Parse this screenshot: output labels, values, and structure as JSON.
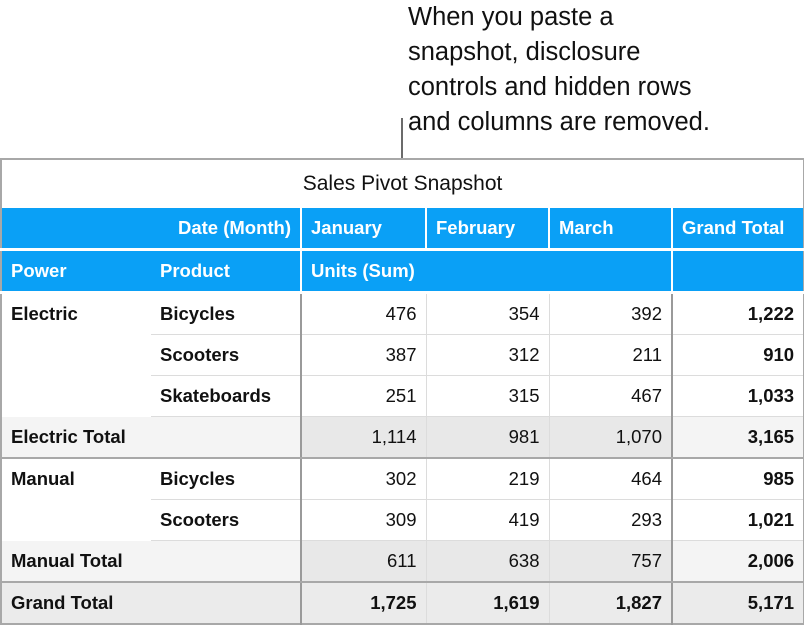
{
  "callout": {
    "lines": [
      "When you paste a",
      "snapshot, disclosure",
      "controls and hidden rows",
      "and columns are removed."
    ]
  },
  "table": {
    "title": "Sales Pivot Snapshot",
    "header1": {
      "label": "Date (Month)",
      "months": [
        "January",
        "February",
        "March"
      ],
      "grand_total": "Grand Total"
    },
    "header2": {
      "power": "Power",
      "product": "Product",
      "measure": "Units (Sum)"
    },
    "electric": {
      "power": "Electric",
      "rows": [
        {
          "product": "Bicycles",
          "values": [
            "476",
            "354",
            "392"
          ],
          "total": "1,222"
        },
        {
          "product": "Scooters",
          "values": [
            "387",
            "312",
            "211"
          ],
          "total": "910"
        },
        {
          "product": "Skateboards",
          "values": [
            "251",
            "315",
            "467"
          ],
          "total": "1,033"
        }
      ],
      "subtotal": {
        "label": "Electric Total",
        "values": [
          "1,114",
          "981",
          "1,070"
        ],
        "total": "3,165"
      }
    },
    "manual": {
      "power": "Manual",
      "rows": [
        {
          "product": "Bicycles",
          "values": [
            "302",
            "219",
            "464"
          ],
          "total": "985"
        },
        {
          "product": "Scooters",
          "values": [
            "309",
            "419",
            "293"
          ],
          "total": "1,021"
        }
      ],
      "subtotal": {
        "label": "Manual Total",
        "values": [
          "611",
          "638",
          "757"
        ],
        "total": "2,006"
      }
    },
    "grand_total": {
      "label": "Grand Total",
      "values": [
        "1,725",
        "1,619",
        "1,827"
      ],
      "total": "5,171"
    }
  },
  "colors": {
    "header_blue": "#0aa0f6",
    "subtotal_gray": "#f4f4f4",
    "grand_total_gray": "#ebebeb"
  }
}
